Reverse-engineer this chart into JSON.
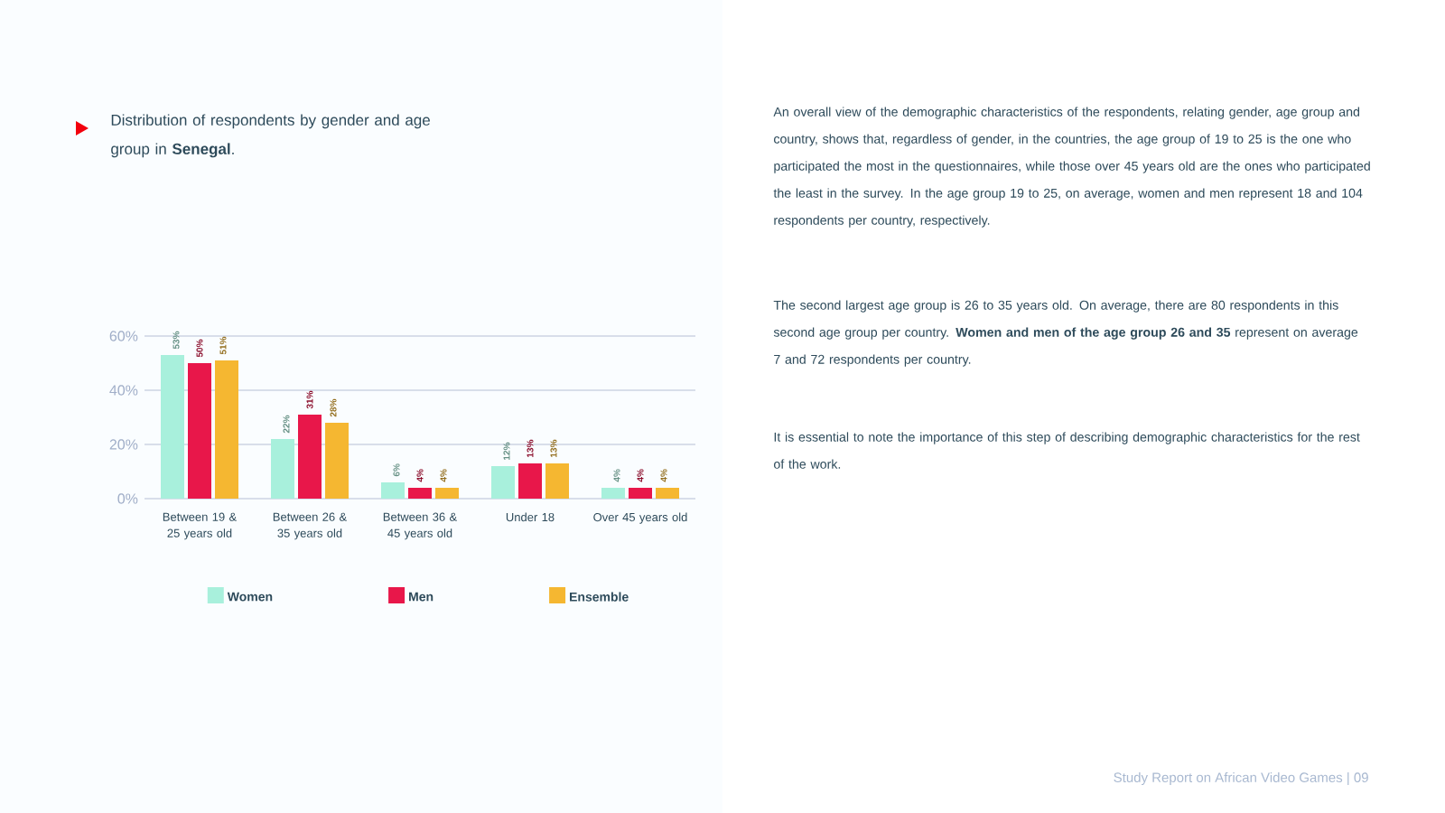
{
  "chart_data": {
    "type": "bar",
    "title": "Distribution of respondents by gender and age group in **Senegal**.",
    "categories": [
      "Between 19 & 25 years old",
      "Between 26 & 35 years old",
      "Between 36 & 45 years old",
      "Under 18",
      "Over 45 years old"
    ],
    "series": [
      {
        "name": "Women",
        "color": "#a8f0dc",
        "values": [
          53,
          22,
          6,
          12,
          4
        ],
        "value_labels": [
          "53%",
          "22%",
          "6%",
          "12%",
          "4%"
        ]
      },
      {
        "name": "Men",
        "color": "#e8174a",
        "values": [
          50,
          31,
          4,
          13,
          4
        ],
        "value_labels": [
          "50%",
          "31%",
          "4%",
          "13%",
          "4%"
        ]
      },
      {
        "name": "Ensemble",
        "color": "#f5b731",
        "values": [
          51,
          28,
          4,
          13,
          4
        ],
        "value_labels": [
          "51%",
          "28%",
          "4%",
          "13%",
          "4%"
        ]
      }
    ],
    "ylim": [
      0,
      60
    ],
    "yticks": [
      {
        "value": 0,
        "label": "0%"
      },
      {
        "value": 20,
        "label": "20%"
      },
      {
        "value": 40,
        "label": "40%"
      },
      {
        "value": 60,
        "label": "60%"
      }
    ],
    "grid": "y",
    "legend": "bottom",
    "annotations": [
      "An overall view of the demographic characteristics of the respondents, relating gender, age group and country, shows that, regardless of gender, in the countries, the age group of 19 to 25 is the one who participated the most in the questionnaires, while those over 45 years old are the ones who participated the least in the survey. In the age group 19 to 25, on average, women and men represent 18 and 104 respondents per country, respectively.",
      "The second largest age group is 26 to 35 years old. On average, there are 80 respondents in this second age group per country. **Women and men of the age group 26 and 35** represent on average 7 and 72 respondents per country.",
      "It is essential to note the importance of this step of describing demographic characteristics for the rest of the work.",
      "Study Report on African Video Games | 09"
    ]
  }
}
